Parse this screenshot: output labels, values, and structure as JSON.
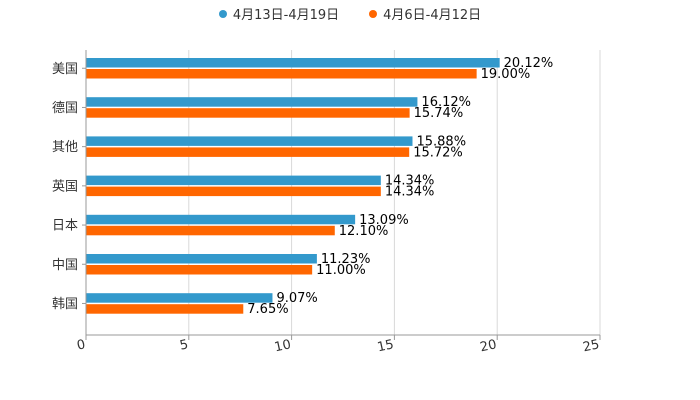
{
  "chart_data": {
    "type": "bar",
    "orientation": "horizontal",
    "categories": [
      "美国",
      "德国",
      "其他",
      "英国",
      "日本",
      "中国",
      "韩国"
    ],
    "series": [
      {
        "name": "4月13日-4月19日",
        "color": "#3399cc",
        "values": [
          20.12,
          16.12,
          15.88,
          14.34,
          13.09,
          11.23,
          9.07
        ],
        "labels": [
          "20.12%",
          "16.12%",
          "15.88%",
          "14.34%",
          "13.09%",
          "11.23%",
          "9.07%"
        ]
      },
      {
        "name": "4月6日-4月12日",
        "color": "#ff6600",
        "values": [
          19.0,
          15.74,
          15.72,
          14.34,
          12.1,
          11.0,
          7.65
        ],
        "labels": [
          "19.00%",
          "15.74%",
          "15.72%",
          "14.34%",
          "12.10%",
          "11.00%",
          "7.65%"
        ]
      }
    ],
    "xlim": [
      0,
      25
    ],
    "xticks": [
      "0",
      "5",
      "10",
      "15",
      "20",
      "25"
    ],
    "grid": true,
    "legend_position": "top-center"
  }
}
